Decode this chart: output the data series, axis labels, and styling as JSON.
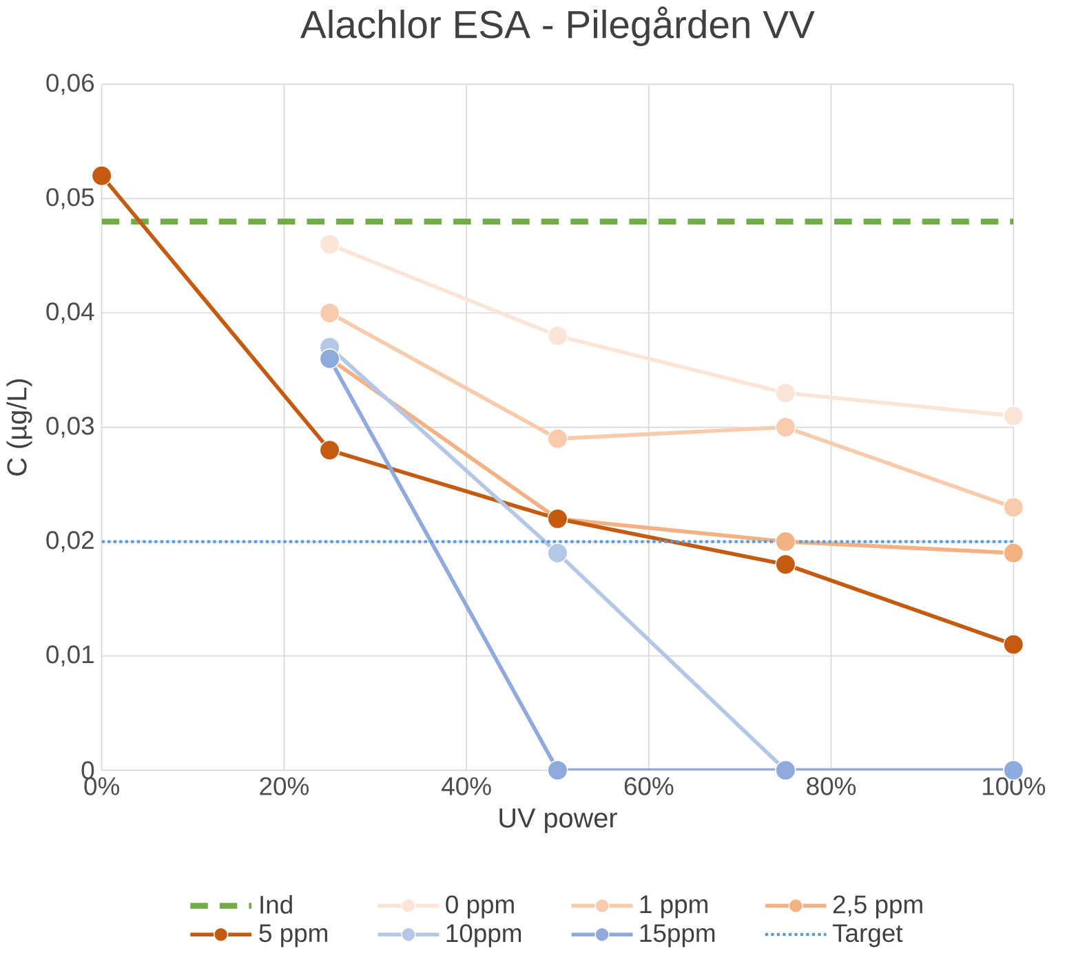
{
  "chart_data": {
    "type": "line",
    "title": "Alachlor ESA - Pilegården VV",
    "xlabel": "UV power",
    "ylabel": "C (µg/L)",
    "xlim": [
      0,
      100
    ],
    "ylim": [
      0,
      0.06
    ],
    "xticks": [
      {
        "value": 0,
        "label": "0%"
      },
      {
        "value": 20,
        "label": "20%"
      },
      {
        "value": 40,
        "label": "40%"
      },
      {
        "value": 60,
        "label": "60%"
      },
      {
        "value": 80,
        "label": "80%"
      },
      {
        "value": 100,
        "label": "100%"
      }
    ],
    "yticks": [
      {
        "value": 0,
        "label": "0"
      },
      {
        "value": 0.01,
        "label": "0,01"
      },
      {
        "value": 0.02,
        "label": "0,02"
      },
      {
        "value": 0.03,
        "label": "0,03"
      },
      {
        "value": 0.04,
        "label": "0,04"
      },
      {
        "value": 0.05,
        "label": "0,05"
      },
      {
        "value": 0.06,
        "label": "0,06"
      }
    ],
    "grid": true,
    "legend": "bottom",
    "marker": "circle",
    "line_style": "solid",
    "series": [
      {
        "name": "Ind",
        "color": "#70ad47",
        "x": [
          0,
          100
        ],
        "values": [
          0.048,
          0.048
        ],
        "marker": "none",
        "line_style": "dashed"
      },
      {
        "name": "0 ppm",
        "color": "#fbe5d6",
        "x": [
          25,
          50,
          75,
          100
        ],
        "values": [
          0.046,
          0.038,
          0.033,
          0.031
        ]
      },
      {
        "name": "1 ppm",
        "color": "#f8cbad",
        "x": [
          25,
          50,
          75,
          100
        ],
        "values": [
          0.04,
          0.029,
          0.03,
          0.023
        ]
      },
      {
        "name": "2,5 ppm",
        "color": "#f4b183",
        "x": [
          25,
          50,
          75,
          100
        ],
        "values": [
          0.036,
          0.022,
          0.02,
          0.019
        ]
      },
      {
        "name": "5 ppm",
        "color": "#c55a11",
        "x": [
          0,
          25,
          50,
          75,
          100
        ],
        "values": [
          0.052,
          0.028,
          0.022,
          0.018,
          0.011
        ]
      },
      {
        "name": "10ppm",
        "color": "#b4c7e7",
        "x": [
          25,
          50,
          75,
          100
        ],
        "values": [
          0.037,
          0.019,
          0,
          0
        ]
      },
      {
        "name": "15ppm",
        "color": "#8faadc",
        "x": [
          25,
          50,
          75,
          100
        ],
        "values": [
          0.036,
          0,
          0,
          0
        ]
      },
      {
        "name": "Target",
        "color": "#5b9bd5",
        "x": [
          0,
          100
        ],
        "values": [
          0.02,
          0.02
        ],
        "marker": "none",
        "line_style": "dotted"
      }
    ]
  }
}
